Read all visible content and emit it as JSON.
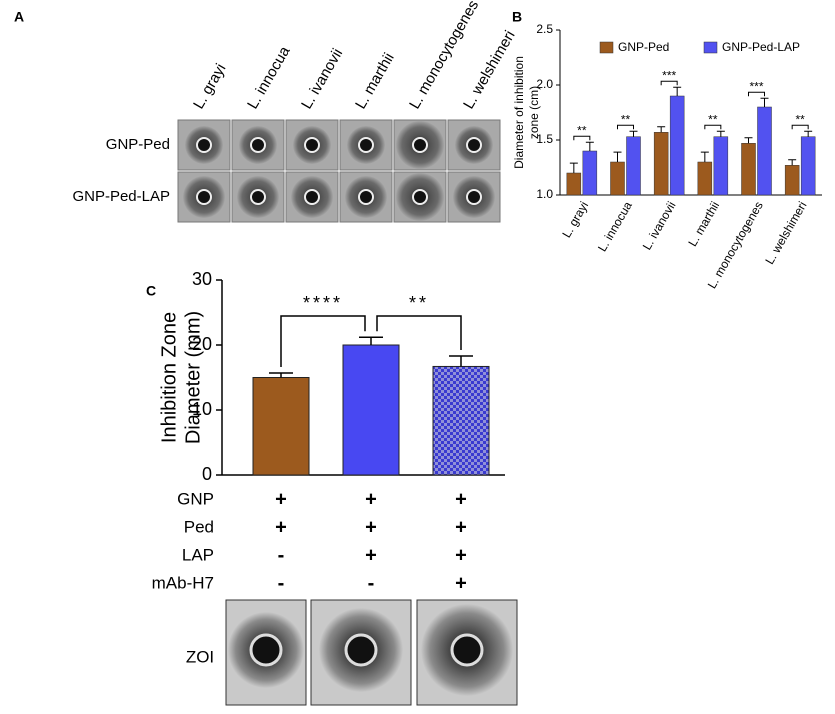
{
  "panel_a": {
    "label": "A",
    "columns": [
      "L. grayi",
      "L. innocua",
      "L. ivanovii",
      "L. marthii",
      "L. monocytogenes",
      "L. welshimeri"
    ],
    "rows": [
      "GNP-Ped",
      "GNP-Ped-LAP"
    ]
  },
  "chart_data": [
    {
      "type": "bar",
      "panel_label": "B",
      "ylabel": [
        "Diameter of inhibition",
        "zone (cm)"
      ],
      "categories": [
        "L. grayi",
        "L. innocua",
        "L. ivanovii",
        "L. marthii",
        "L. monocytogenes",
        "L. welshimeri"
      ],
      "series": [
        {
          "name": "GNP-Ped",
          "color": "#9c5a1e",
          "values": [
            1.2,
            1.3,
            1.57,
            1.3,
            1.47,
            1.27
          ],
          "errors": [
            0.09,
            0.09,
            0.05,
            0.09,
            0.05,
            0.05
          ]
        },
        {
          "name": "GNP-Ped-LAP",
          "color": "#5252f0",
          "values": [
            1.4,
            1.53,
            1.9,
            1.53,
            1.8,
            1.53
          ],
          "errors": [
            0.08,
            0.05,
            0.08,
            0.05,
            0.08,
            0.05
          ]
        }
      ],
      "annotations": [
        "**",
        "**",
        "***",
        "**",
        "***",
        "**"
      ],
      "ylim": [
        1.0,
        2.5
      ],
      "yticks": [
        {
          "value": 1.0,
          "label": "1.0"
        },
        {
          "value": 1.5,
          "label": "1.5"
        },
        {
          "value": 2.0,
          "label": "2.0"
        },
        {
          "value": 2.5,
          "label": "2.5"
        }
      ],
      "legend": "top"
    },
    {
      "type": "bar",
      "panel_label": "C",
      "ylabel": [
        "Inhibition Zone",
        "Diameter (mm)"
      ],
      "values": [
        15,
        20,
        16.7
      ],
      "errors": [
        0.7,
        1.2,
        1.6
      ],
      "colors": [
        "#9c5a1e",
        "#4848f2",
        "#4848f2"
      ],
      "patterns": [
        "solid",
        "solid",
        "checker"
      ],
      "annotations": [
        "****",
        "**"
      ],
      "ylim": [
        0,
        30
      ],
      "yticks": [
        0,
        10,
        20,
        30
      ]
    }
  ],
  "panel_c_table": {
    "rows": [
      {
        "label": "GNP",
        "cells": [
          "+",
          "+",
          "+"
        ]
      },
      {
        "label": "Ped",
        "cells": [
          "+",
          "+",
          "+"
        ]
      },
      {
        "label": "LAP",
        "cells": [
          "-",
          "+",
          "+"
        ]
      },
      {
        "label": "mAb-H7",
        "cells": [
          "-",
          "-",
          "+"
        ]
      }
    ],
    "zoi_label": "ZOI"
  }
}
